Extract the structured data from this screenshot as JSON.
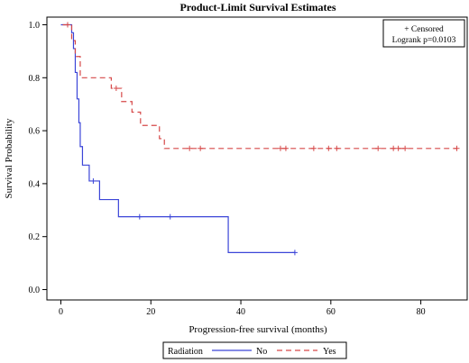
{
  "chart_data": {
    "type": "line",
    "title": "Product-Limit Survival Estimates",
    "xlabel": "Progression-free survival (months)",
    "ylabel": "Survival Probability",
    "xlim": [
      0,
      88
    ],
    "ylim": [
      0.0,
      1.0
    ],
    "x_ticks": [
      0,
      20,
      40,
      60,
      80
    ],
    "y_ticks": [
      "0.0",
      "0.2",
      "0.4",
      "0.6",
      "0.8",
      "1.0"
    ],
    "grid": false,
    "step": true,
    "legend": {
      "title": "Radiation",
      "placement": "bottom",
      "entries": [
        "No",
        "Yes"
      ]
    },
    "inset": {
      "placement": "top-right",
      "censored_label": "+ Censored",
      "logrank_label": "Logrank p=0.0103"
    },
    "series": [
      {
        "name": "No",
        "color": "#3b45d8",
        "dash": "solid",
        "steps": [
          [
            0,
            1.0
          ],
          [
            2.4,
            0.97
          ],
          [
            2.8,
            0.91
          ],
          [
            3.2,
            0.82
          ],
          [
            3.6,
            0.72
          ],
          [
            4.0,
            0.63
          ],
          [
            4.3,
            0.54
          ],
          [
            4.8,
            0.47
          ],
          [
            6.3,
            0.41
          ],
          [
            8.6,
            0.34
          ],
          [
            12.8,
            0.275
          ],
          [
            37.2,
            0.14
          ],
          [
            52,
            0.14
          ]
        ],
        "censored": [
          [
            7.2,
            0.41
          ],
          [
            17.5,
            0.275
          ],
          [
            24.3,
            0.275
          ],
          [
            52,
            0.14
          ]
        ]
      },
      {
        "name": "Yes",
        "color": "#d64848",
        "dash": "dashed",
        "steps": [
          [
            0.4,
            1.0
          ],
          [
            2.4,
            0.94
          ],
          [
            3.2,
            0.88
          ],
          [
            4.3,
            0.8
          ],
          [
            11.2,
            0.76
          ],
          [
            13.5,
            0.71
          ],
          [
            15.8,
            0.67
          ],
          [
            17.7,
            0.62
          ],
          [
            21.9,
            0.57
          ],
          [
            23.0,
            0.533
          ],
          [
            88,
            0.533
          ]
        ],
        "censored": [
          [
            1.5,
            1.0
          ],
          [
            12.3,
            0.76
          ],
          [
            28.6,
            0.533
          ],
          [
            31.0,
            0.533
          ],
          [
            48.8,
            0.533
          ],
          [
            50.0,
            0.533
          ],
          [
            56.2,
            0.533
          ],
          [
            59.5,
            0.533
          ],
          [
            61.3,
            0.533
          ],
          [
            70.5,
            0.533
          ],
          [
            73.9,
            0.533
          ],
          [
            75.0,
            0.533
          ],
          [
            76.5,
            0.533
          ],
          [
            88,
            0.533
          ]
        ]
      }
    ]
  }
}
